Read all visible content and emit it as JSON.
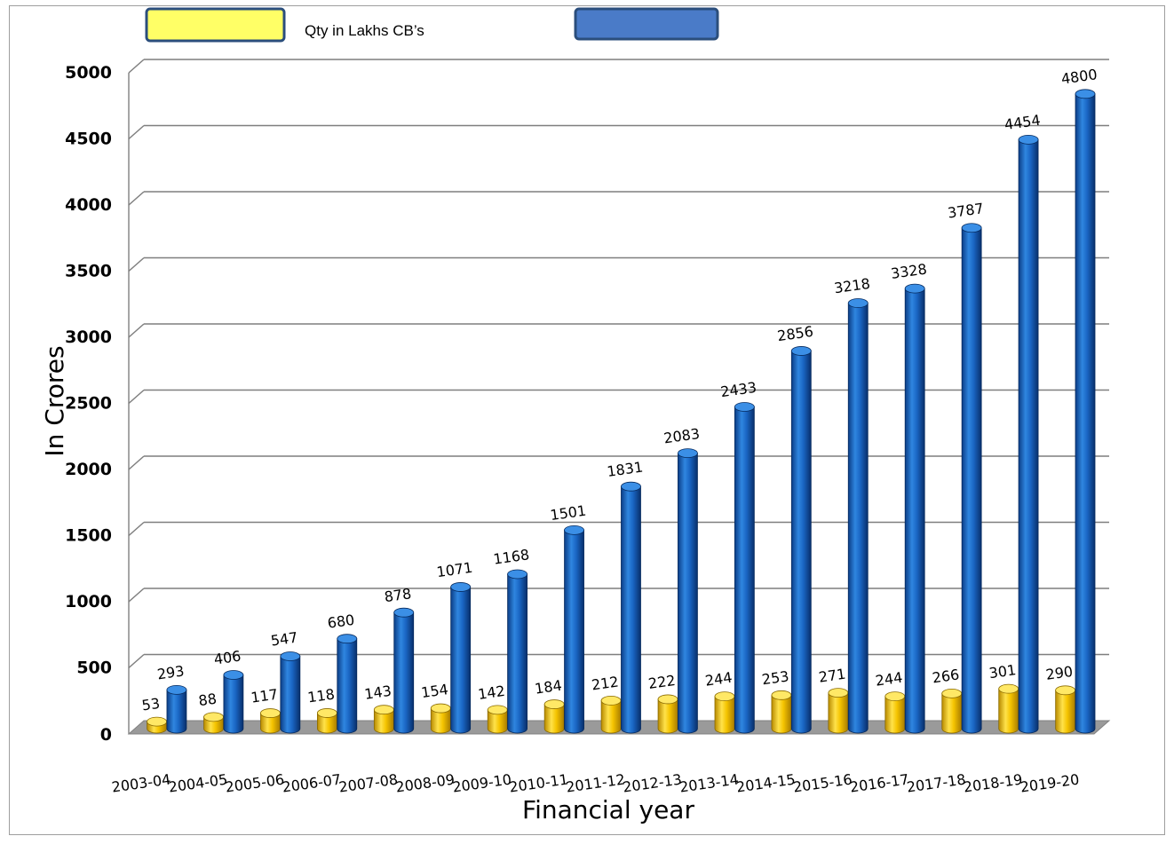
{
  "chart_data": {
    "type": "bar",
    "style": "3d-cylinder",
    "categories": [
      "2003-04",
      "2004-05",
      "2005-06",
      "2006-07",
      "2007-08",
      "2008-09",
      "2009-10",
      "2010-11",
      "2011-12",
      "2012-13",
      "2013-14",
      "2014-15",
      "2015-16",
      "2016-17",
      "2017-18",
      "2018-19",
      "2019-20"
    ],
    "series": [
      {
        "name": "Qty in Lakhs CB’s",
        "color": "#FFD700",
        "values": [
          53,
          88,
          117,
          118,
          143,
          154,
          142,
          184,
          212,
          222,
          244,
          253,
          271,
          244,
          266,
          301,
          290
        ]
      },
      {
        "name": "",
        "color": "#1F6FC8",
        "values": [
          293,
          406,
          547,
          680,
          878,
          1071,
          1168,
          1501,
          1831,
          2083,
          2433,
          2856,
          3218,
          3328,
          3787,
          4454,
          4800
        ]
      }
    ],
    "ylabel": "In Crores",
    "xlabel": "Financial year",
    "ylim": [
      0,
      5000
    ],
    "yticks": [
      0,
      500,
      1000,
      1500,
      2000,
      2500,
      3000,
      3500,
      4000,
      4500,
      5000
    ],
    "grid": true,
    "legend": "top-left"
  }
}
